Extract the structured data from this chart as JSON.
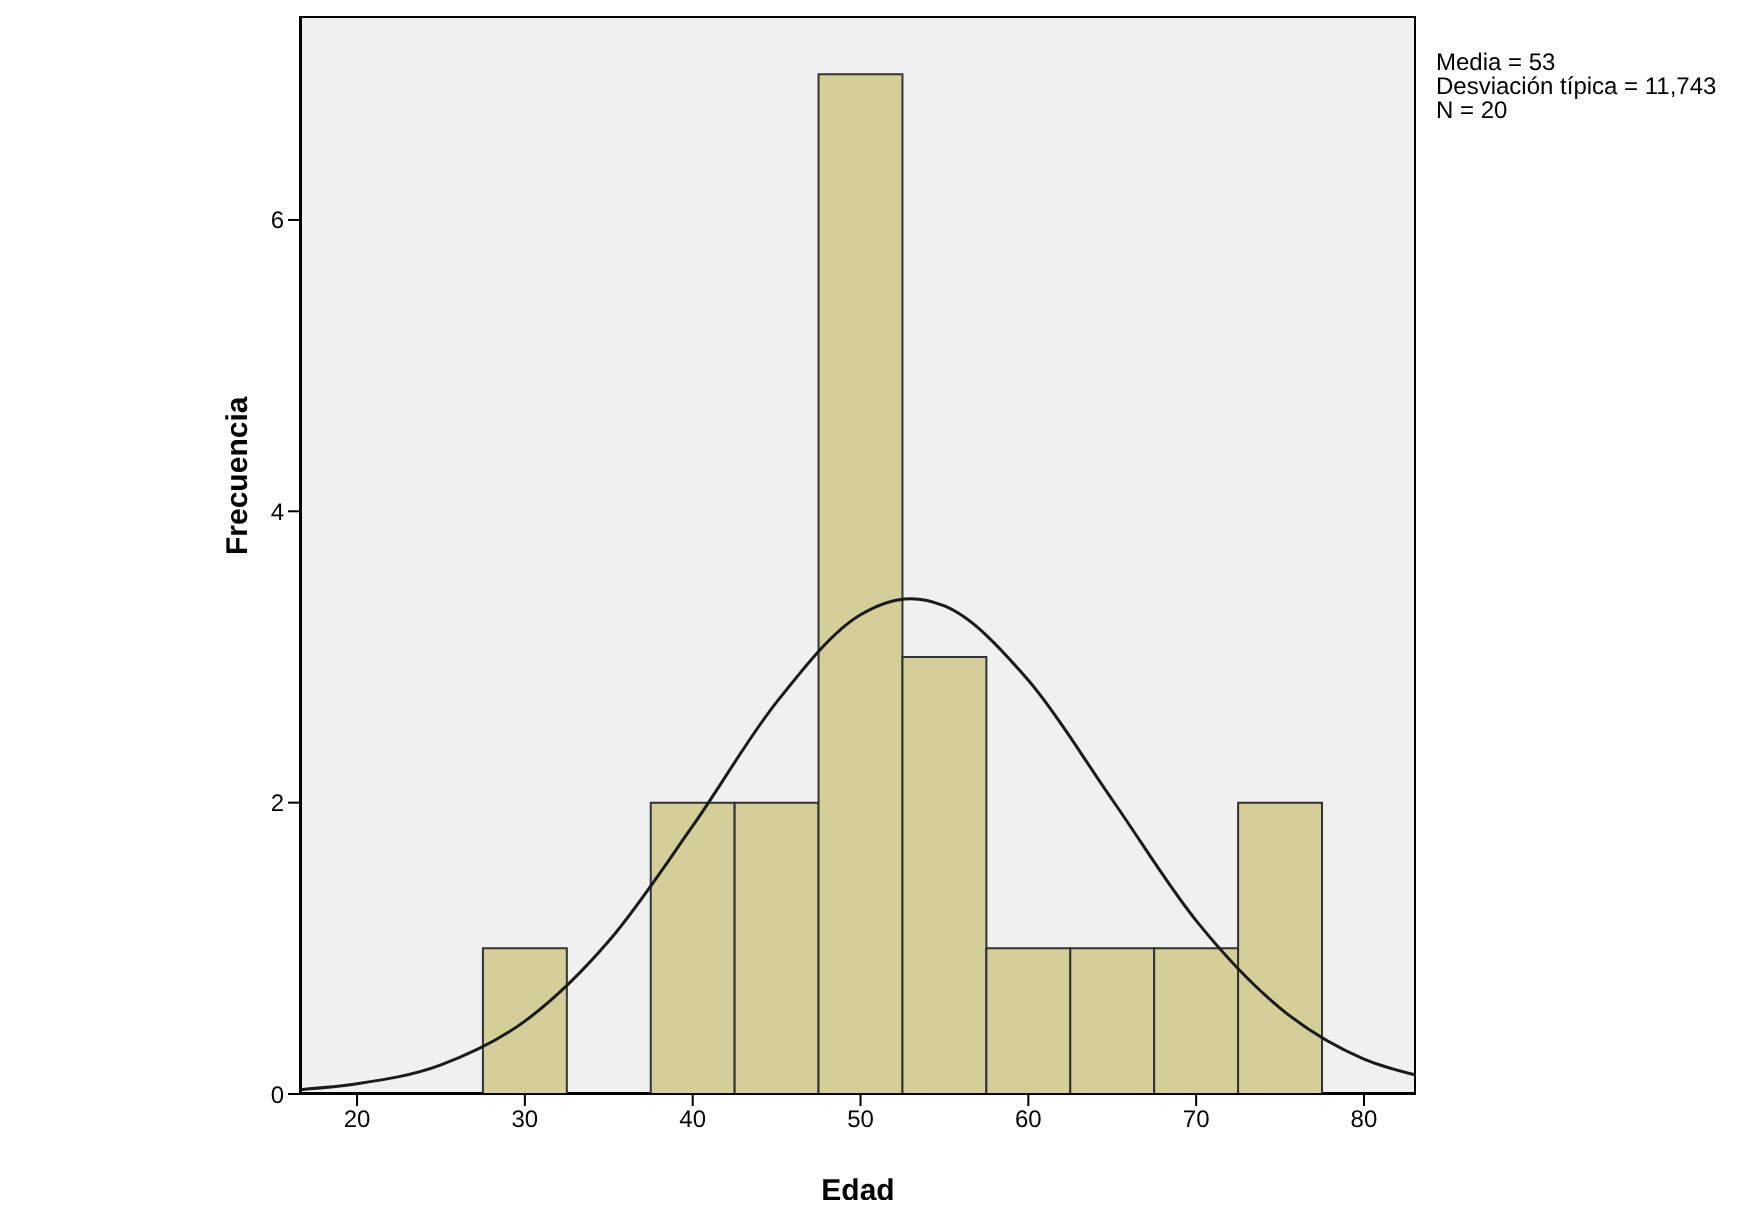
{
  "chart_data": {
    "type": "histogram",
    "xlabel": "Edad",
    "ylabel": "Frecuencia",
    "bins": [
      27.5,
      32.5,
      37.5,
      42.5,
      47.5,
      52.5,
      57.5,
      62.5,
      67.5,
      72.5,
      77.5
    ],
    "values": [
      1,
      0,
      2,
      2,
      7,
      3,
      1,
      1,
      1,
      2
    ],
    "color": "#d4cf99",
    "series": [
      {
        "type": "line",
        "color": "#1a1a1a",
        "x": [
          16.6,
          20,
          25,
          30,
          35,
          40,
          45,
          50,
          53,
          55,
          60,
          65,
          70,
          75,
          80,
          83.1
        ],
        "values": [
          0.03,
          0.07,
          0.2,
          0.5,
          1.05,
          1.84,
          2.69,
          3.29,
          3.4,
          3.35,
          2.84,
          2.02,
          1.19,
          0.59,
          0.24,
          0.13
        ]
      }
    ],
    "xlim": [
      16.6,
      83.1
    ],
    "xticks": [
      20,
      30,
      40,
      50,
      60,
      70,
      80
    ],
    "ylim": [
      0,
      7.4
    ],
    "yticks": [
      0,
      2,
      4,
      6
    ],
    "grid": false,
    "legend": false,
    "annotations": [
      "Media = 53",
      "Desviación típica = 11,743",
      "N = 20"
    ]
  }
}
